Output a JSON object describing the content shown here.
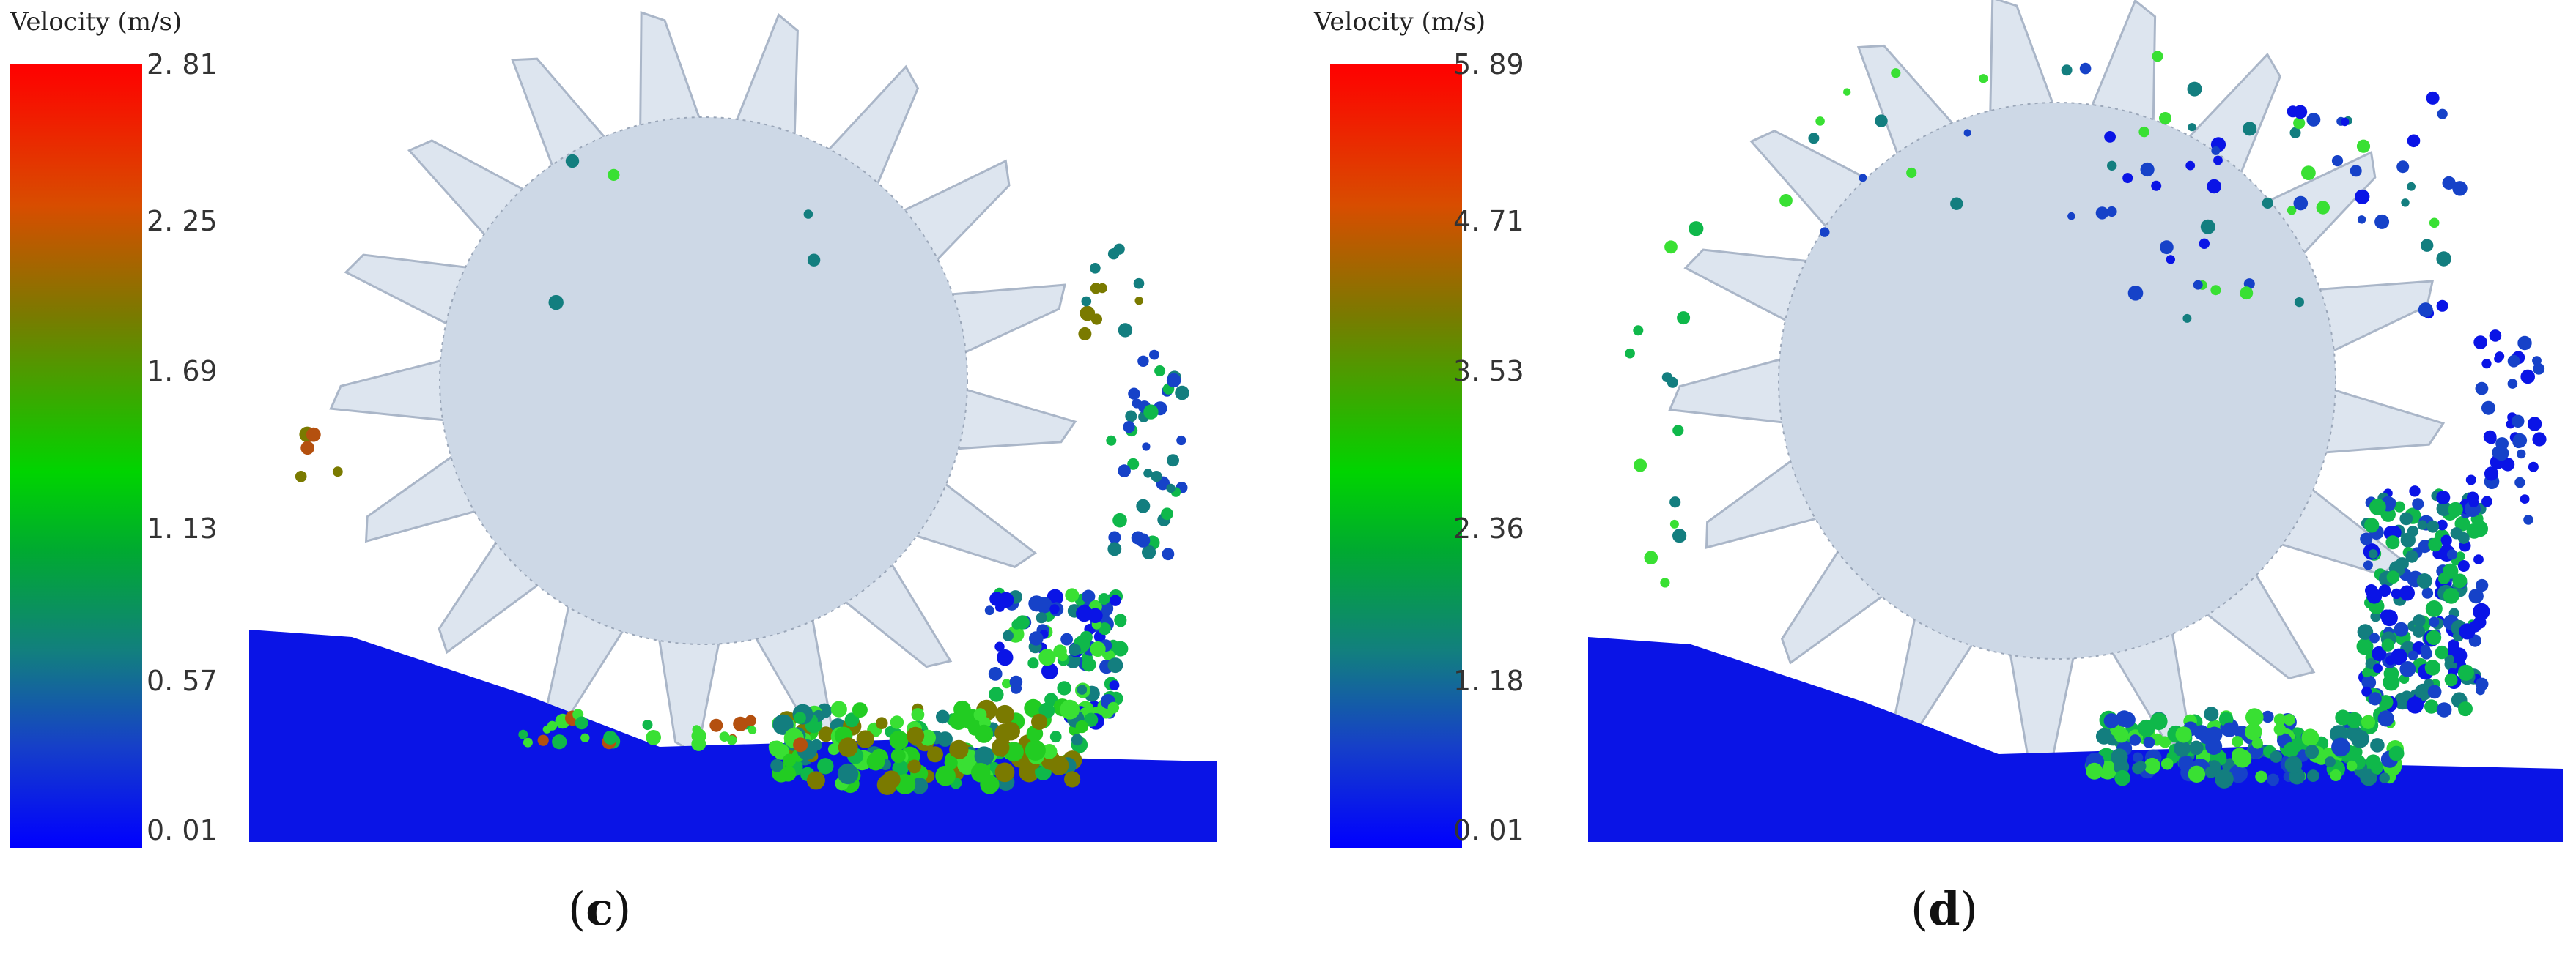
{
  "panels": [
    {
      "id": "c",
      "legend_title": "Velocity (m/s)",
      "ticks": [
        "2. 81",
        "2. 25",
        "1. 69",
        "1. 13",
        "0. 57",
        "0. 01"
      ],
      "caption_open": "(",
      "caption_letter": "c",
      "caption_close": ")"
    },
    {
      "id": "d",
      "legend_title": "Velocity (m/s)",
      "ticks": [
        "5. 89",
        "4. 71",
        "3. 53",
        "2. 36",
        "1. 18",
        "0. 01"
      ],
      "caption_open": "(",
      "caption_letter": "d",
      "caption_close": ")"
    }
  ],
  "colors": {
    "cutter_disc": "#cdd8e6",
    "cutter_teeth": "#dde5ef",
    "bed_blue": "#0a14e6",
    "colorbar_top": "#ff0000",
    "colorbar_mid": "#00d400",
    "colorbar_bottom": "#0000ff"
  }
}
